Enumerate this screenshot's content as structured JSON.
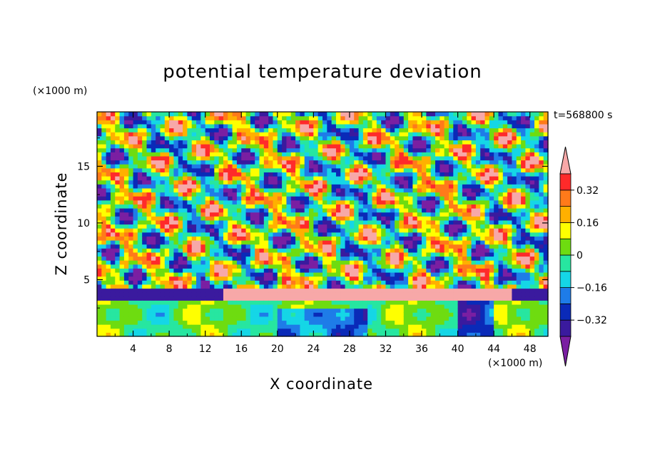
{
  "chart_data": {
    "type": "heatmap",
    "title": "potential temperature deviation",
    "xlabel": "X coordinate",
    "ylabel": "Z coordinate",
    "x_unit_label": "(×1000 m)",
    "y_unit_label": "(×1000 m)",
    "time_label": "t=568800 s",
    "xlim": [
      0,
      50
    ],
    "ylim": [
      0,
      19.8
    ],
    "x_ticks": [
      4,
      8,
      12,
      16,
      20,
      24,
      28,
      32,
      36,
      40,
      44,
      48
    ],
    "x_tick_labels": [
      "4",
      "8",
      "12",
      "16",
      "20",
      "24",
      "28",
      "32",
      "36",
      "40",
      "44",
      "48"
    ],
    "y_ticks": [
      5,
      10,
      15
    ],
    "y_tick_labels": [
      "5",
      "10",
      "15"
    ],
    "colorbar": {
      "levels": [
        -0.4,
        -0.32,
        -0.24,
        -0.16,
        -0.08,
        0,
        0.08,
        0.16,
        0.24,
        0.32,
        0.4
      ],
      "tick_values": [
        -0.32,
        -0.16,
        0,
        0.16,
        0.32
      ],
      "tick_labels": [
        "−0.32",
        "−0.16",
        "0",
        "0.16",
        "0.32"
      ],
      "colors": [
        "#7a1fa2",
        "#3a1a9e",
        "#0a2ab8",
        "#1e7ce8",
        "#15d6e6",
        "#27e6a0",
        "#6edc10",
        "#ffff00",
        "#ffb000",
        "#ff7a1a",
        "#ff2a2a",
        "#f7a8a8"
      ],
      "extend": "both"
    }
  }
}
